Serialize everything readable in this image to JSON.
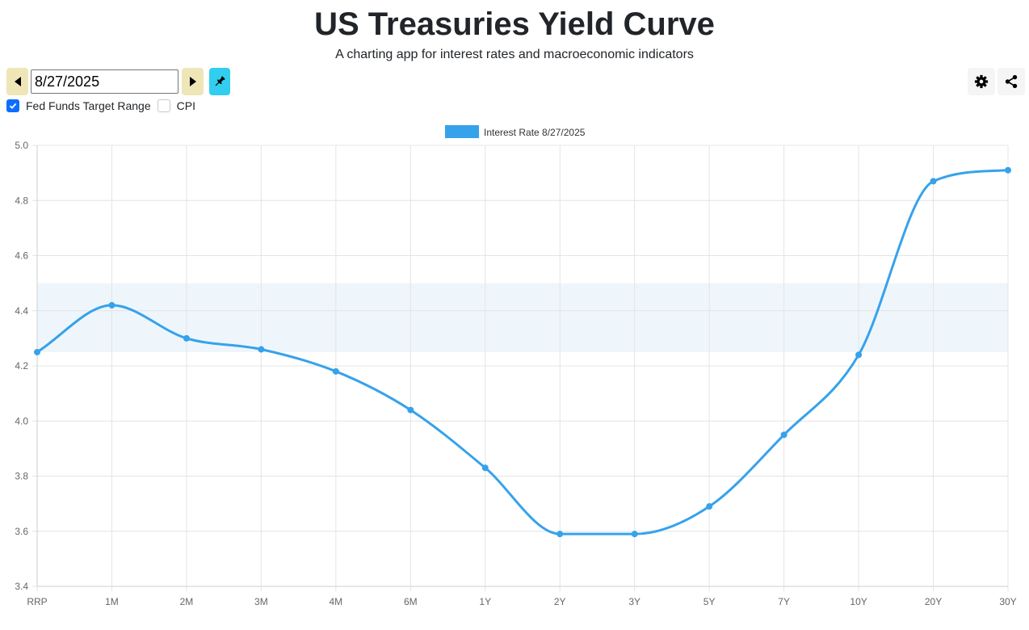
{
  "header": {
    "title": "US Treasuries Yield Curve",
    "subtitle": "A charting app for interest rates and macroeconomic indicators"
  },
  "controls": {
    "date_value": "8/27/2025",
    "prev_icon": "triangle-left-icon",
    "next_icon": "triangle-right-icon",
    "pin_icon": "pin-icon",
    "settings_icon": "gear-icon",
    "share_icon": "share-icon",
    "checkboxes": [
      {
        "label": "Fed Funds Target Range",
        "checked": true
      },
      {
        "label": "CPI",
        "checked": false
      }
    ]
  },
  "colors": {
    "series": "#36a2eb",
    "band": "#eef6fc",
    "nav_button": "#efe6b8",
    "pin_button": "#32cef0",
    "checkbox": "#0d6efd"
  },
  "chart_data": {
    "type": "line",
    "categories": [
      "RRP",
      "1M",
      "2M",
      "3M",
      "4M",
      "6M",
      "1Y",
      "2Y",
      "3Y",
      "5Y",
      "7Y",
      "10Y",
      "20Y",
      "30Y"
    ],
    "series": [
      {
        "name": "Interest Rate 8/27/2025",
        "values": [
          4.25,
          4.42,
          4.3,
          4.26,
          4.18,
          4.04,
          3.83,
          3.59,
          3.59,
          3.69,
          3.95,
          4.24,
          4.87,
          4.91
        ]
      }
    ],
    "fed_funds_range": [
      4.25,
      4.5
    ],
    "ylim": [
      3.4,
      5.0
    ],
    "yticks": [
      3.4,
      3.6,
      3.8,
      4.0,
      4.2,
      4.4,
      4.6,
      4.8,
      5.0
    ],
    "ytick_labels": [
      "3.4",
      "3.6",
      "3.8",
      "4.0",
      "4.2",
      "4.4",
      "4.6",
      "4.8",
      "5.0"
    ],
    "legend_position": "top-center",
    "grid": true
  }
}
